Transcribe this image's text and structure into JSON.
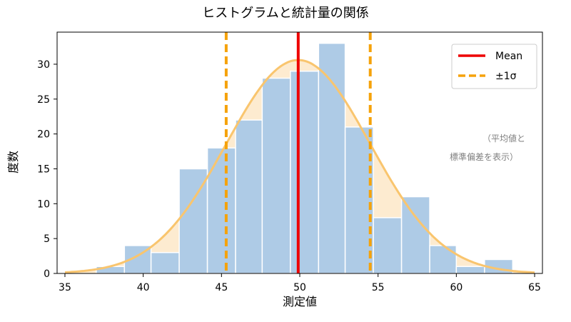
{
  "chart_data": {
    "type": "bar",
    "title": "ヒストグラムと統計量の関係",
    "xlabel": "測定値",
    "ylabel": "度数",
    "xlim": [
      34.5,
      65.5
    ],
    "ylim": [
      0,
      34.6
    ],
    "x_ticks": [
      35,
      40,
      45,
      50,
      55,
      60,
      65
    ],
    "y_ticks": [
      0,
      5,
      10,
      15,
      20,
      25,
      30
    ],
    "bins": [
      {
        "x0": 37.0,
        "x1": 38.8,
        "count": 1
      },
      {
        "x0": 38.8,
        "x1": 40.5,
        "count": 4
      },
      {
        "x0": 40.5,
        "x1": 42.3,
        "count": 3
      },
      {
        "x0": 42.3,
        "x1": 44.1,
        "count": 15
      },
      {
        "x0": 44.1,
        "x1": 45.9,
        "count": 18
      },
      {
        "x0": 45.9,
        "x1": 47.6,
        "count": 22
      },
      {
        "x0": 47.6,
        "x1": 49.4,
        "count": 28
      },
      {
        "x0": 49.4,
        "x1": 51.2,
        "count": 29
      },
      {
        "x0": 51.2,
        "x1": 52.9,
        "count": 33
      },
      {
        "x0": 52.9,
        "x1": 54.7,
        "count": 21
      },
      {
        "x0": 54.7,
        "x1": 56.5,
        "count": 8
      },
      {
        "x0": 56.5,
        "x1": 58.3,
        "count": 11
      },
      {
        "x0": 58.3,
        "x1": 60.0,
        "count": 4
      },
      {
        "x0": 60.0,
        "x1": 61.8,
        "count": 1
      },
      {
        "x0": 61.8,
        "x1": 63.6,
        "count": 2
      }
    ],
    "bar_color": "#aecbe6",
    "curve": {
      "x_min": 35,
      "x_max": 65,
      "peak": 30.6,
      "color": "#f9c56e",
      "fill": "#fdebd0"
    },
    "mean": 49.9,
    "std": 4.6,
    "mean_color": "#ee0000",
    "std_color": "#f5a20a",
    "legend": {
      "position": "top-right",
      "entries": [
        "Mean",
        "±1σ"
      ]
    },
    "annotation": [
      "（平均値と",
      "標準偏差を表示）"
    ],
    "grid": false
  }
}
